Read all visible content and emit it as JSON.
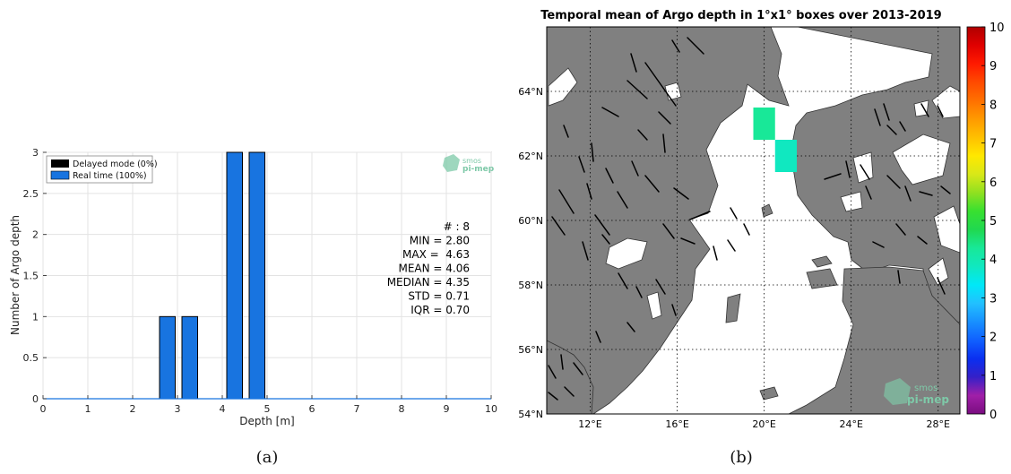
{
  "captions": {
    "left": "(a)",
    "right": "(b)"
  },
  "chart_data": [
    {
      "type": "bar",
      "xlabel": "Depth [m]",
      "ylabel": "Number of Argo depth",
      "xlim": [
        0,
        10
      ],
      "ylim": [
        0,
        3
      ],
      "x_ticks": [
        "0",
        "1",
        "2",
        "3",
        "4",
        "5",
        "6",
        "7",
        "8",
        "9",
        "10"
      ],
      "y_ticks": [
        "0",
        "0.5",
        "1",
        "1.5",
        "2",
        "2.5",
        "3"
      ],
      "grid": true,
      "legend": {
        "placement": "top-left",
        "items": [
          {
            "label": "Delayed mode (0%)",
            "color": "#000000"
          },
          {
            "label": "Real time (100%)",
            "color": "#1874e0"
          }
        ]
      },
      "bars": [
        {
          "x_start": 2.6,
          "x_end": 2.95,
          "value": 1
        },
        {
          "x_start": 3.1,
          "x_end": 3.45,
          "value": 1
        },
        {
          "x_start": 4.1,
          "x_end": 4.45,
          "value": 3
        },
        {
          "x_start": 4.6,
          "x_end": 4.95,
          "value": 3
        }
      ],
      "stats": [
        "# : 8",
        "MIN = 2.80",
        "MAX =  4.63",
        "MEAN = 4.06",
        "MEDIAN = 4.35",
        "STD = 0.71",
        "IQR = 0.70"
      ],
      "logo": [
        "smos",
        "pi-mep"
      ]
    },
    {
      "type": "heatmap",
      "title": "Temporal mean of Argo depth in 1°x1° boxes over 2013-2019",
      "x_ticks": [
        {
          "value": 12,
          "label": "12°E"
        },
        {
          "value": 16,
          "label": "16°E"
        },
        {
          "value": 20,
          "label": "20°E"
        },
        {
          "value": 24,
          "label": "24°E"
        },
        {
          "value": 28,
          "label": "28°E"
        }
      ],
      "y_ticks": [
        {
          "value": 54,
          "label": "54°N"
        },
        {
          "value": 56,
          "label": "56°N"
        },
        {
          "value": 58,
          "label": "58°N"
        },
        {
          "value": 60,
          "label": "60°N"
        },
        {
          "value": 62,
          "label": "62°N"
        },
        {
          "value": 64,
          "label": "64°N"
        }
      ],
      "xlim": [
        10,
        29
      ],
      "ylim": [
        54,
        66
      ],
      "grid": "dotted",
      "cells": [
        {
          "lon": 20,
          "lat": 63,
          "value": 4.5
        },
        {
          "lon": 21,
          "lat": 62,
          "value": 3.6
        }
      ],
      "colorbar": {
        "range": [
          0,
          10
        ],
        "ticks": [
          "0",
          "1",
          "2",
          "3",
          "4",
          "5",
          "6",
          "7",
          "8",
          "9",
          "10"
        ],
        "colors": [
          "#7a0d80",
          "#a01fa8",
          "#3520c8",
          "#0a2ff0",
          "#1060ff",
          "#1890ff",
          "#22c0ff",
          "#00e8f8",
          "#10e8c0",
          "#18e898",
          "#20d850",
          "#38e030",
          "#90e020",
          "#d8e818",
          "#ffe800",
          "#ffc000",
          "#ff9a00",
          "#ff7000",
          "#ff4a00",
          "#ff1a00",
          "#e00000",
          "#b00000"
        ]
      },
      "logo": [
        "smos",
        "pi-mep"
      ]
    }
  ]
}
